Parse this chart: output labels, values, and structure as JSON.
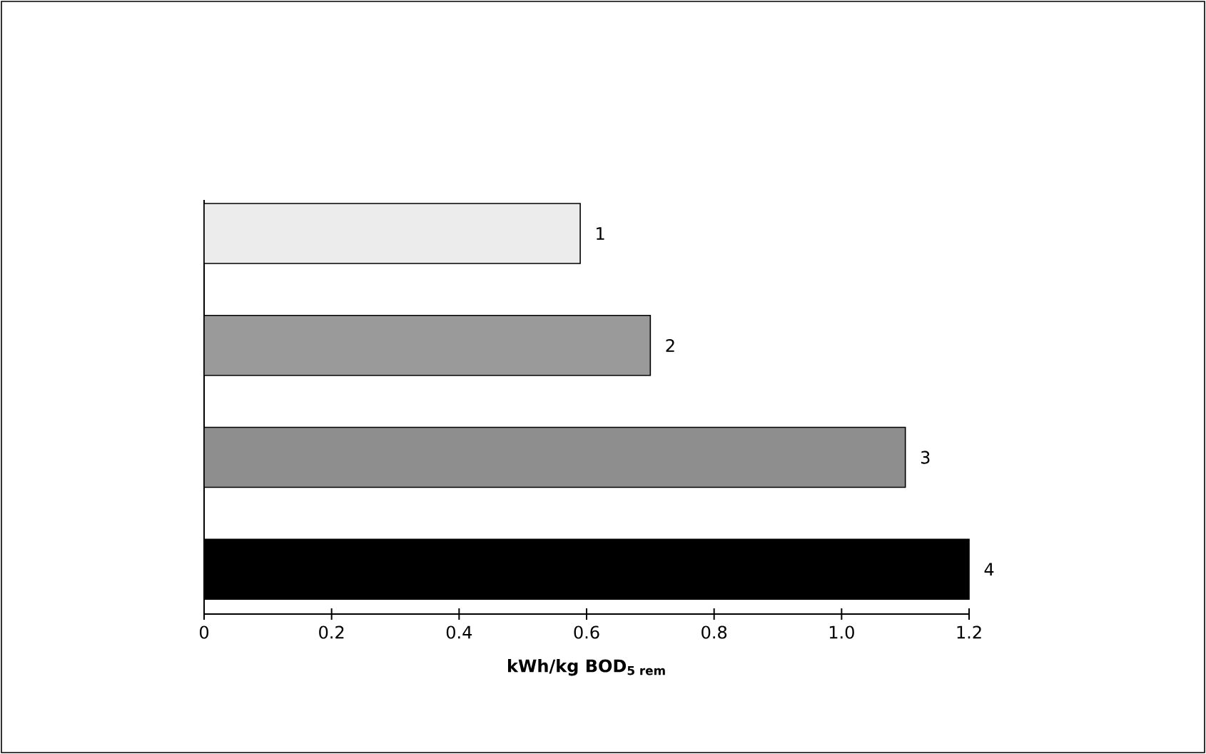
{
  "chart_data": {
    "type": "bar",
    "orientation": "horizontal",
    "xlabel": "kWh/kg BOD$_{5 rem}$",
    "categories": [
      "1",
      "2",
      "3",
      "4"
    ],
    "values": [
      0.59,
      0.7,
      1.1,
      1.2
    ],
    "colors": [
      "#ececec",
      "#9a9a9a",
      "#8e8e8e",
      "#000000"
    ],
    "xlim": [
      0,
      1.2
    ],
    "xticks": [
      0,
      0.2,
      0.4,
      0.6,
      0.8,
      {
        "value": 1.0,
        "label": "1.0"
      },
      1.2
    ]
  }
}
